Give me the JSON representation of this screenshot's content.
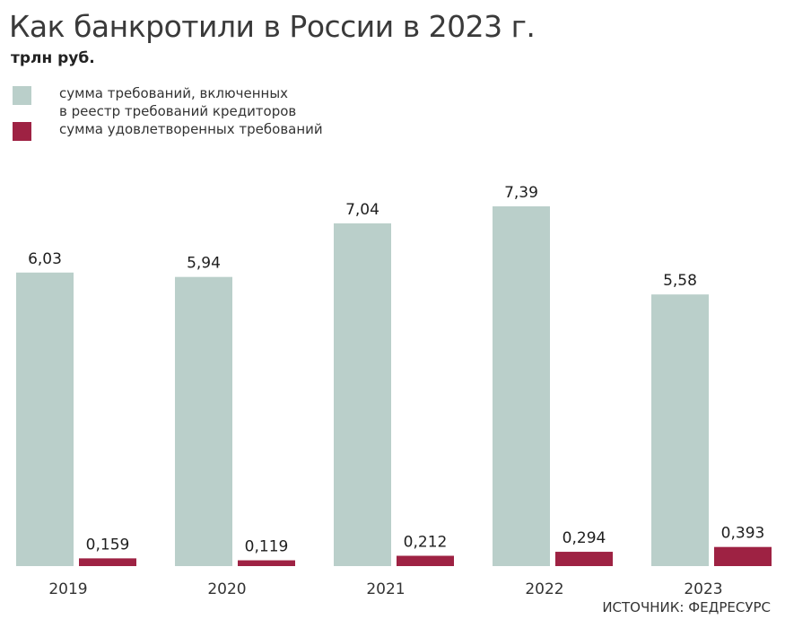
{
  "title": "Как банкротили в России в 2023 г.",
  "unit": "трлн руб.",
  "source": "ИСТОЧНИК: ФЕДРЕСУРС",
  "chart_data": {
    "type": "bar",
    "categories": [
      "2019",
      "2020",
      "2021",
      "2022",
      "2023"
    ],
    "series": [
      {
        "name": "сумма требований, включенных\nв реестр требований кредиторов",
        "color": "#bacfca",
        "values": [
          6.03,
          5.94,
          7.04,
          7.39,
          5.58
        ],
        "labels": [
          "6,03",
          "5,94",
          "7,04",
          "7,39",
          "5,58"
        ]
      },
      {
        "name": "сумма удовлетворенных требований",
        "color": "#9e2243",
        "values": [
          0.159,
          0.119,
          0.212,
          0.294,
          0.393
        ],
        "labels": [
          "0,159",
          "0,119",
          "0,212",
          "0,294",
          "0,393"
        ]
      }
    ],
    "ylim": [
      0,
      7.39
    ],
    "grid": false,
    "legend_position": "top-left"
  }
}
